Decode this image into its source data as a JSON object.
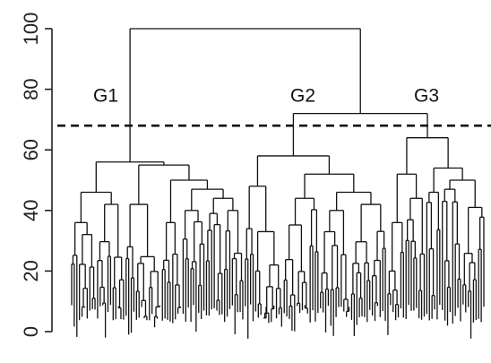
{
  "chart_data": {
    "type": "dendrogram",
    "title": "",
    "xlabel": "",
    "ylabel": "",
    "ylim": [
      0,
      100
    ],
    "y_ticks": [
      "0",
      "20",
      "40",
      "60",
      "80",
      "100"
    ],
    "y_tick_values": [
      0,
      20,
      40,
      60,
      80,
      100
    ],
    "cut_height": 68,
    "cut_style": "dashed",
    "root_height": 100,
    "groups": [
      {
        "name": "G1",
        "merge_height": 56,
        "label_height": 78
      },
      {
        "name": "G2",
        "merge_height": 58,
        "label_height": 78
      },
      {
        "name": "G3",
        "merge_height": 64,
        "label_height": 78
      }
    ],
    "merges": [
      {
        "between": [
          "G2",
          "G3"
        ],
        "height": 72
      },
      {
        "between": [
          "G1",
          "G2+G3"
        ],
        "height": 100
      }
    ]
  }
}
